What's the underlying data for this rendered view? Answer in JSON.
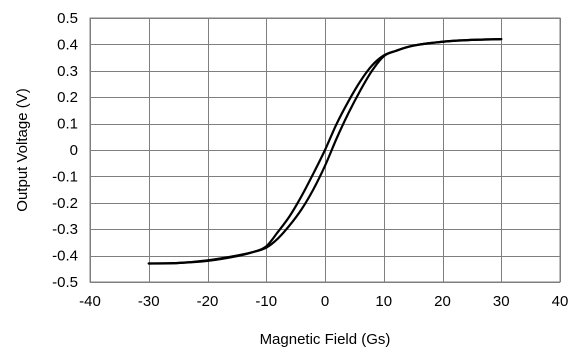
{
  "chart_data": {
    "type": "line",
    "title": "",
    "xlabel": "Magnetic Field (Gs)",
    "ylabel": "Output Voltage (V)",
    "xlim": [
      -40,
      40
    ],
    "ylim": [
      -0.5,
      0.5
    ],
    "x_ticks": [
      -40,
      -30,
      -20,
      -10,
      0,
      10,
      20,
      30,
      40
    ],
    "x_tick_labels": [
      "-40",
      "-30",
      "-20",
      "-10",
      "0",
      "10",
      "20",
      "30",
      "40"
    ],
    "y_ticks": [
      0.5,
      0.4,
      0.3,
      0.2,
      0.1,
      0,
      -0.1,
      -0.2,
      -0.3,
      -0.4,
      -0.5
    ],
    "y_tick_labels": [
      "0.5",
      "0.4",
      "0.3",
      "0.2",
      "0.1",
      "0",
      "-0.1",
      "-0.2",
      "-0.3",
      "-0.4",
      "-0.5"
    ],
    "grid": true,
    "legend": "none",
    "line_color": "#000000",
    "series": [
      {
        "x": [
          -30,
          -25,
          -20,
          -15,
          -12,
          -10,
          -8,
          -6,
          -4,
          -2,
          0,
          2,
          4,
          6,
          8,
          10,
          12,
          15,
          20,
          25,
          30
        ],
        "values": [
          -0.43,
          -0.428,
          -0.418,
          -0.4,
          -0.385,
          -0.37,
          -0.335,
          -0.285,
          -0.225,
          -0.15,
          -0.06,
          0.045,
          0.14,
          0.225,
          0.3,
          0.355,
          0.375,
          0.395,
          0.41,
          0.417,
          0.42
        ]
      },
      {
        "x": [
          30,
          25,
          20,
          15,
          12,
          10,
          8,
          6,
          4,
          2,
          0,
          -2,
          -4,
          -6,
          -8,
          -10,
          -12,
          -15,
          -20,
          -25,
          -30
        ],
        "values": [
          0.42,
          0.417,
          0.41,
          0.395,
          0.375,
          0.358,
          0.32,
          0.26,
          0.185,
          0.1,
          0.0,
          -0.09,
          -0.175,
          -0.25,
          -0.31,
          -0.365,
          -0.385,
          -0.402,
          -0.42,
          -0.428,
          -0.43
        ]
      }
    ]
  }
}
